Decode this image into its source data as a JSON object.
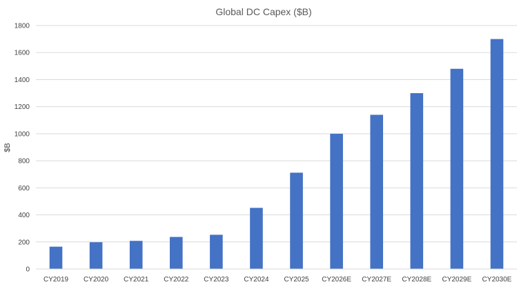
{
  "chart_data": {
    "type": "bar",
    "title": "Global DC Capex ($B)",
    "xlabel": "",
    "ylabel": "$B",
    "categories": [
      "CY2019",
      "CY2020",
      "CY2021",
      "CY2022",
      "CY2023",
      "CY2024",
      "CY2025",
      "CY2026E",
      "CY2027E",
      "CY2028E",
      "CY2029E",
      "CY2030E"
    ],
    "values": [
      165,
      198,
      208,
      237,
      253,
      452,
      712,
      1000,
      1140,
      1300,
      1480,
      1700
    ],
    "ylim": [
      0,
      1800
    ],
    "yticks": [
      0,
      200,
      400,
      600,
      800,
      1000,
      1200,
      1400,
      1600,
      1800
    ],
    "grid": true,
    "bar_color": "#4472C4",
    "grid_color": "#D9D9D9"
  }
}
